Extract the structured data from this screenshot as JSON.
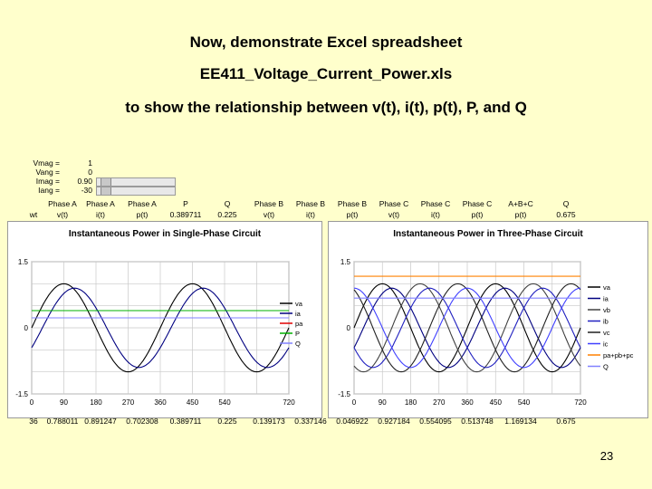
{
  "title": {
    "line1": "Now, demonstrate Excel spreadsheet",
    "line2": "EE411_Voltage_Current_Power.xls",
    "line3": "to show the relationship between v(t), i(t), p(t), P, and Q"
  },
  "controls": [
    {
      "label": "Vmag =",
      "value": "1",
      "pos": 0.5
    },
    {
      "label": "Vang =",
      "value": "0",
      "pos": 0.02
    },
    {
      "label": "Imag =",
      "value": "0.90",
      "pos": 0.05
    },
    {
      "label": "Iang =",
      "value": "-30",
      "pos": 0.05
    }
  ],
  "headers": {
    "row1": [
      "Phase A",
      "Phase A",
      "Phase A",
      "P",
      "Q",
      "Phase B",
      "Phase B",
      "Phase B",
      "Phase C",
      "Phase C",
      "Phase C",
      "A+B+C",
      "Q"
    ],
    "row2": [
      "wt",
      "v(t)",
      "i(t)",
      "p(t)",
      "0.389711",
      "0.225",
      "v(t)",
      "i(t)",
      "p(t)",
      "v(t)",
      "i(t)",
      "p(t)",
      "p(t)",
      "0.675"
    ]
  },
  "bottom_row": [
    "36",
    "0.788011",
    "0.891247",
    "0.702308",
    "0.389711",
    "0.225",
    "0.139173",
    "0.337146",
    "0.046922",
    "0.927184",
    "0.554095",
    "0.513748",
    "1.169134",
    "0.675"
  ],
  "colors": {
    "va": "#000000",
    "ia": "#000080",
    "pa": "#e00000",
    "P": "#00b000",
    "Q": "#8080ff",
    "vb": "#404040",
    "ib": "#2020c0",
    "vc": "#202020",
    "ic": "#4040ff",
    "p3": "#ff8000"
  },
  "chart_data": [
    {
      "type": "line",
      "title": "Instantaneous Power in Single-Phase Circuit",
      "xlabel": "",
      "ylabel": "",
      "xlim": [
        0,
        720
      ],
      "ylim": [
        -1.5,
        1.5
      ],
      "xticks": [
        "0",
        "90",
        "180",
        "270",
        "360",
        "450",
        "540",
        "720"
      ],
      "yticks": [
        "1.5",
        "0",
        "-1.5"
      ],
      "legend_position": "right",
      "grid": true,
      "series": [
        {
          "name": "va",
          "type": "sin",
          "amp": 1.0,
          "phase": 0,
          "offset": 0
        },
        {
          "name": "ia",
          "type": "sin",
          "amp": 0.9,
          "phase": -30,
          "offset": 0
        },
        {
          "name": "pa",
          "type": "const",
          "offset": 0.3897
        },
        {
          "name": "P",
          "type": "const",
          "offset": 0.3897
        },
        {
          "name": "Q",
          "type": "const",
          "offset": 0.225
        }
      ]
    },
    {
      "type": "line",
      "title": "Instantaneous Power in Three-Phase Circuit",
      "xlabel": "",
      "ylabel": "",
      "xlim": [
        0,
        720
      ],
      "ylim": [
        -1.5,
        1.5
      ],
      "xticks": [
        "0",
        "90",
        "180",
        "270",
        "360",
        "450",
        "540",
        "720"
      ],
      "yticks": [
        "1.5",
        "0",
        "-1.5"
      ],
      "legend_position": "right",
      "grid": true,
      "series": [
        {
          "name": "va",
          "type": "sin",
          "amp": 1.0,
          "phase": 0,
          "offset": 0
        },
        {
          "name": "ia",
          "type": "sin",
          "amp": 0.9,
          "phase": -30,
          "offset": 0
        },
        {
          "name": "vb",
          "type": "sin",
          "amp": 1.0,
          "phase": -120,
          "offset": 0
        },
        {
          "name": "ib",
          "type": "sin",
          "amp": 0.9,
          "phase": -150,
          "offset": 0
        },
        {
          "name": "vc",
          "type": "sin",
          "amp": 1.0,
          "phase": 120,
          "offset": 0
        },
        {
          "name": "ic",
          "type": "sin",
          "amp": 0.9,
          "phase": 90,
          "offset": 0
        },
        {
          "name": "pa+pb+pc",
          "type": "const",
          "offset": 1.169
        },
        {
          "name": "Q",
          "type": "const",
          "offset": 0.675
        }
      ]
    }
  ],
  "page_number": "23"
}
